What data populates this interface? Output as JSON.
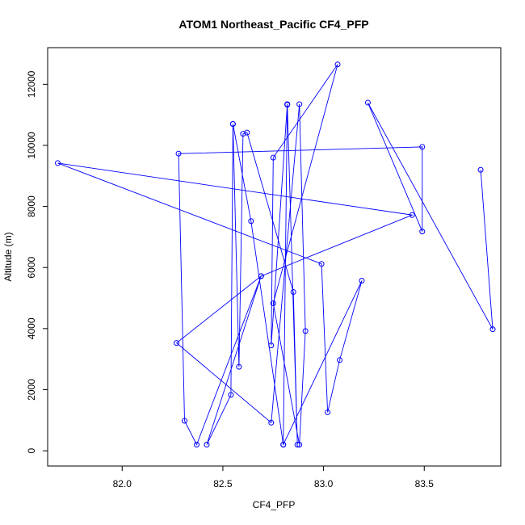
{
  "chart_data": {
    "type": "line",
    "title": "ATOM1 Northeast_Pacific CF4_PFP",
    "xlabel": "CF4_PFP",
    "ylabel": "Altitude (m)",
    "xlim": [
      81.63,
      83.88
    ],
    "ylim": [
      -500,
      13200
    ],
    "xticks": [
      82.0,
      82.5,
      83.0,
      83.5
    ],
    "xtick_labels": [
      "82.0",
      "82.5",
      "83.0",
      "83.5"
    ],
    "yticks": [
      0,
      2000,
      4000,
      6000,
      8000,
      10000,
      12000
    ],
    "ytick_labels": [
      "0",
      "2000",
      "4000",
      "6000",
      "8000",
      "10000",
      "12000"
    ],
    "grid": false,
    "series": [
      {
        "color": "#0000ff",
        "marker": "open-circle",
        "points": [
          {
            "x": 82.55,
            "y": 10700
          },
          {
            "x": 82.58,
            "y": 2750
          },
          {
            "x": 82.6,
            "y": 10380
          },
          {
            "x": 82.62,
            "y": 10420
          },
          {
            "x": 82.85,
            "y": 5200
          },
          {
            "x": 82.87,
            "y": 200
          },
          {
            "x": 82.82,
            "y": 11330
          },
          {
            "x": 82.8,
            "y": 200
          },
          {
            "x": 82.82,
            "y": 11350
          },
          {
            "x": 82.74,
            "y": 3450
          },
          {
            "x": 82.75,
            "y": 9600
          },
          {
            "x": 83.07,
            "y": 12650
          },
          {
            "x": 82.75,
            "y": 4830
          },
          {
            "x": 82.88,
            "y": 200
          },
          {
            "x": 82.91,
            "y": 3920
          },
          {
            "x": 82.88,
            "y": 11350
          },
          {
            "x": 82.74,
            "y": 920
          },
          {
            "x": 82.27,
            "y": 3530
          },
          {
            "x": 82.69,
            "y": 5720
          },
          {
            "x": 82.42,
            "y": 200
          },
          {
            "x": 82.54,
            "y": 1830
          },
          {
            "x": 82.55,
            "y": 10700
          },
          {
            "x": 82.64,
            "y": 7520
          },
          {
            "x": 82.8,
            "y": 200
          },
          {
            "x": 83.19,
            "y": 5570
          },
          {
            "x": 83.08,
            "y": 2970
          },
          {
            "x": 83.02,
            "y": 1260
          },
          {
            "x": 82.99,
            "y": 6120
          },
          {
            "x": 81.68,
            "y": 9420
          },
          {
            "x": 83.44,
            "y": 7720
          },
          {
            "x": 82.69,
            "y": 5720
          },
          {
            "x": 82.37,
            "y": 200
          },
          {
            "x": 82.31,
            "y": 980
          },
          {
            "x": 82.28,
            "y": 9730
          },
          {
            "x": 83.49,
            "y": 9950
          },
          {
            "x": 83.49,
            "y": 7180
          },
          {
            "x": 83.22,
            "y": 11400
          },
          {
            "x": 83.84,
            "y": 3980
          },
          {
            "x": 83.78,
            "y": 9200
          }
        ]
      }
    ]
  }
}
